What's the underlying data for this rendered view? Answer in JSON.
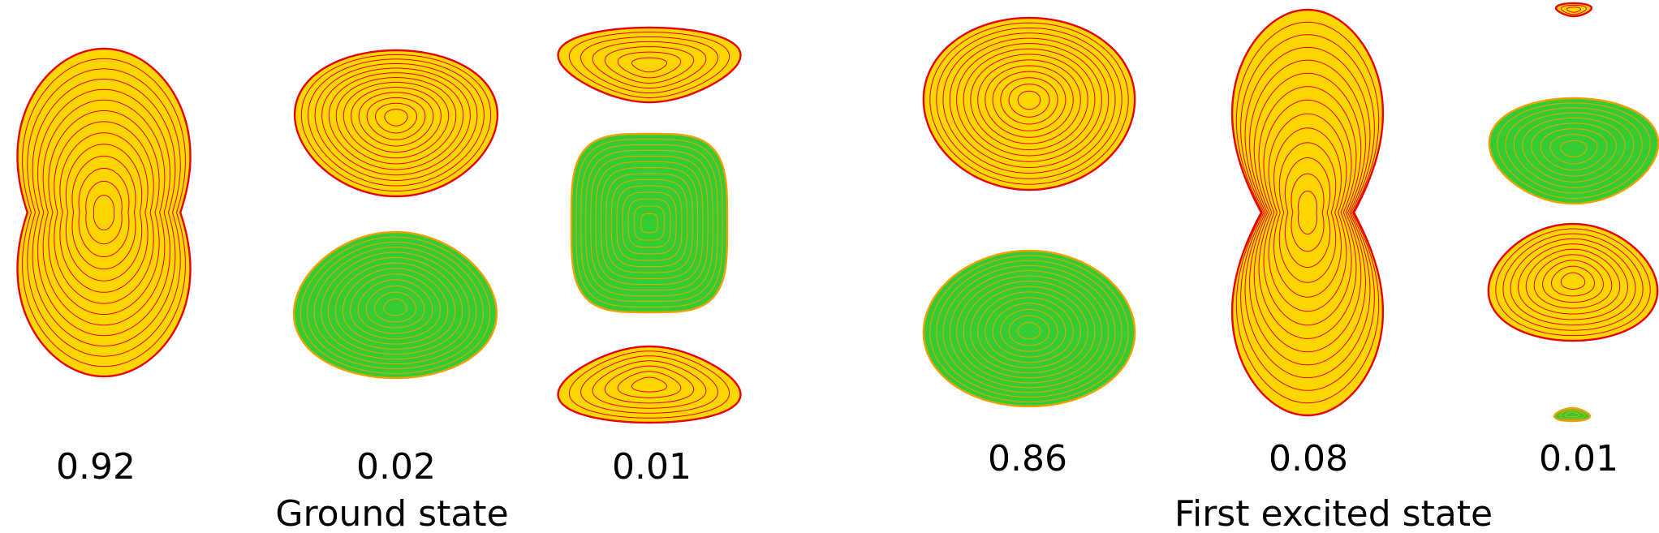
{
  "panels": [
    {
      "state_label": "Ground state",
      "orbitals": [
        {
          "weight": "0.92",
          "lobes": [
            {
              "sign": "positive"
            }
          ]
        },
        {
          "weight": "0.02",
          "lobes": [
            {
              "sign": "positive"
            },
            {
              "sign": "negative"
            }
          ]
        },
        {
          "weight": "0.01",
          "lobes": [
            {
              "sign": "positive"
            },
            {
              "sign": "negative"
            },
            {
              "sign": "positive"
            }
          ]
        }
      ]
    },
    {
      "state_label": "First excited state",
      "orbitals": [
        {
          "weight": "0.86",
          "lobes": [
            {
              "sign": "positive"
            },
            {
              "sign": "negative"
            }
          ]
        },
        {
          "weight": "0.08",
          "lobes": [
            {
              "sign": "positive"
            }
          ]
        },
        {
          "weight": "0.01",
          "lobes": [
            {
              "sign": "positive"
            },
            {
              "sign": "negative"
            },
            {
              "sign": "positive"
            },
            {
              "sign": "negative"
            }
          ]
        }
      ]
    }
  ],
  "colors": {
    "positive_fill": "#FFD700",
    "positive_line": "#E8000B",
    "negative_fill": "#33CC33",
    "negative_line": "#F2A000"
  }
}
